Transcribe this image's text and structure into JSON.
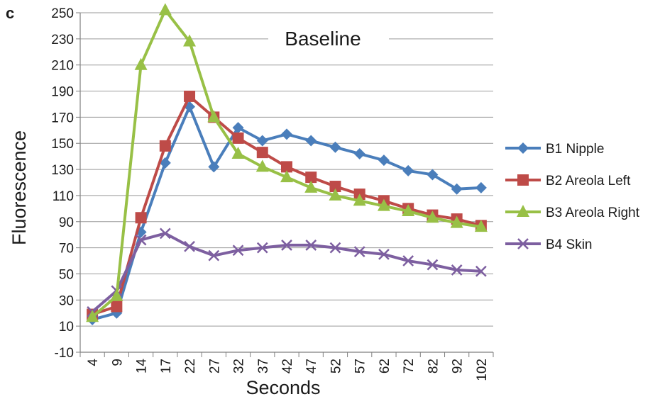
{
  "panel_label": "c",
  "chart_data": {
    "type": "line",
    "title": "Baseline",
    "xlabel": "Seconds",
    "ylabel": "Fluorescence",
    "categories": [
      "4",
      "9",
      "14",
      "17",
      "22",
      "27",
      "32",
      "37",
      "42",
      "47",
      "52",
      "57",
      "62",
      "72",
      "82",
      "92",
      "102"
    ],
    "ylim": [
      -10,
      250
    ],
    "yticks": [
      -10,
      10,
      30,
      50,
      70,
      90,
      110,
      130,
      150,
      170,
      190,
      210,
      230,
      250
    ],
    "grid": "horizontal",
    "legend_position": "right",
    "series": [
      {
        "name": "B1 Nipple",
        "color": "#4a7ebb",
        "marker": "diamond",
        "values": [
          15,
          20,
          82,
          135,
          178,
          132,
          162,
          152,
          157,
          152,
          147,
          142,
          137,
          129,
          126,
          115,
          116
        ]
      },
      {
        "name": "B2 Areola Left",
        "color": "#be4b48",
        "marker": "square",
        "values": [
          19,
          25,
          93,
          148,
          186,
          170,
          154,
          143,
          132,
          124,
          117,
          111,
          106,
          100,
          95,
          92,
          87
        ]
      },
      {
        "name": "B3 Areola Right",
        "color": "#98c046",
        "marker": "triangle",
        "values": [
          17,
          33,
          210,
          252,
          228,
          170,
          142,
          132,
          124,
          116,
          110,
          106,
          102,
          98,
          93,
          89,
          86
        ]
      },
      {
        "name": "B4 Skin",
        "color": "#7d5fa0",
        "marker": "x",
        "values": [
          21,
          37,
          76,
          81,
          71,
          64,
          68,
          70,
          72,
          72,
          70,
          67,
          65,
          60,
          57,
          53,
          52
        ]
      }
    ]
  }
}
